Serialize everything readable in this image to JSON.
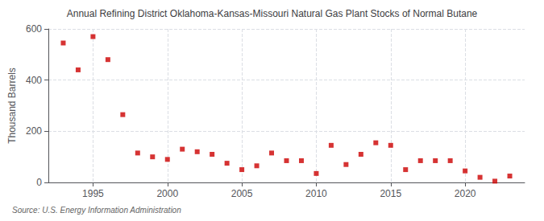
{
  "chart_data": {
    "type": "scatter",
    "title": "Annual Refining District Oklahoma-Kansas-Missouri Natural Gas Plant Stocks of Normal Butane",
    "ylabel": "Thousand Barrels",
    "source": "Source: U.S. Energy Information Administration",
    "x": [
      1993,
      1994,
      1995,
      1996,
      1997,
      1998,
      1999,
      2000,
      2001,
      2002,
      2003,
      2004,
      2005,
      2006,
      2007,
      2008,
      2009,
      2010,
      2011,
      2012,
      2013,
      2014,
      2015,
      2016,
      2017,
      2018,
      2019,
      2020,
      2021,
      2022,
      2023
    ],
    "values": [
      545,
      440,
      570,
      480,
      265,
      115,
      100,
      90,
      130,
      120,
      110,
      75,
      50,
      65,
      115,
      85,
      85,
      35,
      145,
      70,
      110,
      155,
      145,
      50,
      85,
      85,
      85,
      45,
      20,
      5,
      25
    ],
    "color": "#cc0000",
    "marker": "square",
    "xlim": [
      1992,
      2024
    ],
    "xticks": [
      1995,
      2000,
      2005,
      2010,
      2015,
      2020
    ],
    "ylim": [
      0,
      600
    ],
    "yticks": [
      0,
      200,
      400,
      600
    ],
    "grid": true
  }
}
